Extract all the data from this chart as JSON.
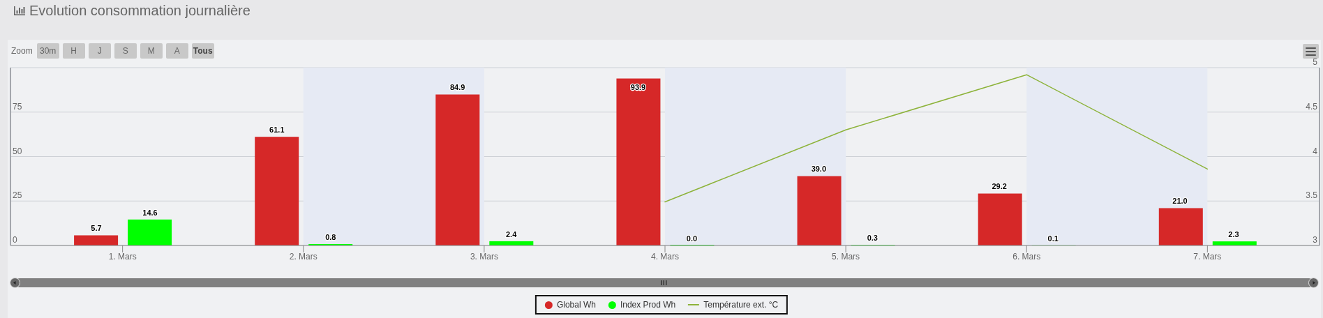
{
  "chart_data": {
    "type": "bar",
    "title": "Evolution consommation journalière",
    "annotations": [
      "Zoom",
      "30m",
      "H",
      "J",
      "S",
      "M",
      "A",
      "Tous"
    ],
    "categories": [
      "1. Mars",
      "2. Mars",
      "3. Mars",
      "4. Mars",
      "5. Mars",
      "6. Mars",
      "7. Mars"
    ],
    "ylim": [
      0,
      100
    ],
    "yticks": [
      0,
      25,
      50,
      75,
      {
        "value": 100,
        "label": null
      }
    ],
    "y2lim": [
      3,
      5
    ],
    "y2ticks": [
      3,
      3.5,
      4,
      4.5,
      5
    ],
    "series": [
      {
        "name": "Global Wh",
        "color": "#d62828",
        "values": [
          5.7,
          61.1,
          84.9,
          93.9,
          39.0,
          29.2,
          21.0
        ],
        "value_labels": [
          "5.7",
          "61.1",
          "84.9",
          "93.9",
          "39.0",
          "29.2",
          "21.0"
        ]
      },
      {
        "name": "Index Prod Wh",
        "color": "#00ff00",
        "values": [
          14.6,
          0.8,
          2.4,
          0.0,
          0.3,
          0.1,
          2.3
        ],
        "value_labels": [
          "14.6",
          "0.8",
          "2.4",
          "0.0",
          "0.3",
          "0.1",
          "2.3"
        ]
      },
      {
        "name": "Température ext. °C",
        "type": "line",
        "axis": "y2",
        "color": "#8db33a",
        "marker": "none",
        "values": [
          null,
          null,
          null,
          3.49,
          4.3,
          4.92,
          3.86
        ]
      }
    ],
    "bands": [
      {
        "axis": "x",
        "from": "2. Mars",
        "to": "3. Mars",
        "color": "#e6eaf4"
      },
      {
        "axis": "x",
        "from": "4. Mars",
        "to": "5. Mars",
        "color": "#e6eaf4"
      },
      {
        "axis": "x",
        "from": "6. Mars",
        "to": "7. Mars",
        "color": "#e6eaf4"
      }
    ],
    "grid": "y",
    "legend": "bottom"
  }
}
